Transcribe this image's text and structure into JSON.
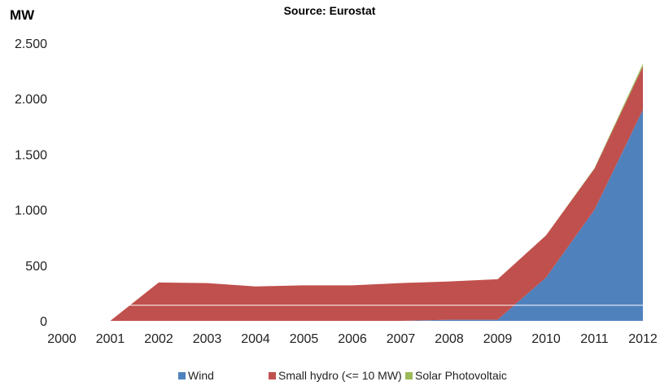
{
  "chart_data": {
    "type": "area",
    "stacked": true,
    "title": "Source: Eurostat",
    "ylabel": "MW",
    "xlabel": "",
    "x": [
      "2000",
      "2001",
      "2002",
      "2003",
      "2004",
      "2005",
      "2006",
      "2007",
      "2008",
      "2009",
      "2010",
      "2011",
      "2012"
    ],
    "ylim": [
      0,
      2500
    ],
    "yticks": [
      {
        "value": 0,
        "label": "0"
      },
      {
        "value": 500,
        "label": "500"
      },
      {
        "value": 1000,
        "label": "1.000"
      },
      {
        "value": 1500,
        "label": "1.500"
      },
      {
        "value": 2000,
        "label": "2.000"
      },
      {
        "value": 2500,
        "label": "2.500"
      }
    ],
    "grid": false,
    "legend": "bottom",
    "series": [
      {
        "name": "Wind",
        "color": "#4F81BD",
        "values": [
          0,
          0,
          0,
          0,
          0,
          0,
          0,
          0,
          10,
          10,
          390,
          1000,
          1900
        ]
      },
      {
        "name": "Small hydro (<= 10 MW)",
        "color": "#C0504D",
        "values": [
          0,
          0,
          345,
          340,
          310,
          320,
          320,
          340,
          345,
          365,
          380,
          370,
          390
        ]
      },
      {
        "name": "Solar Photovoltaic",
        "color": "#9BBB59",
        "values": [
          0,
          0,
          0,
          0,
          0,
          0,
          0,
          0,
          0,
          0,
          0,
          5,
          25
        ]
      }
    ]
  }
}
